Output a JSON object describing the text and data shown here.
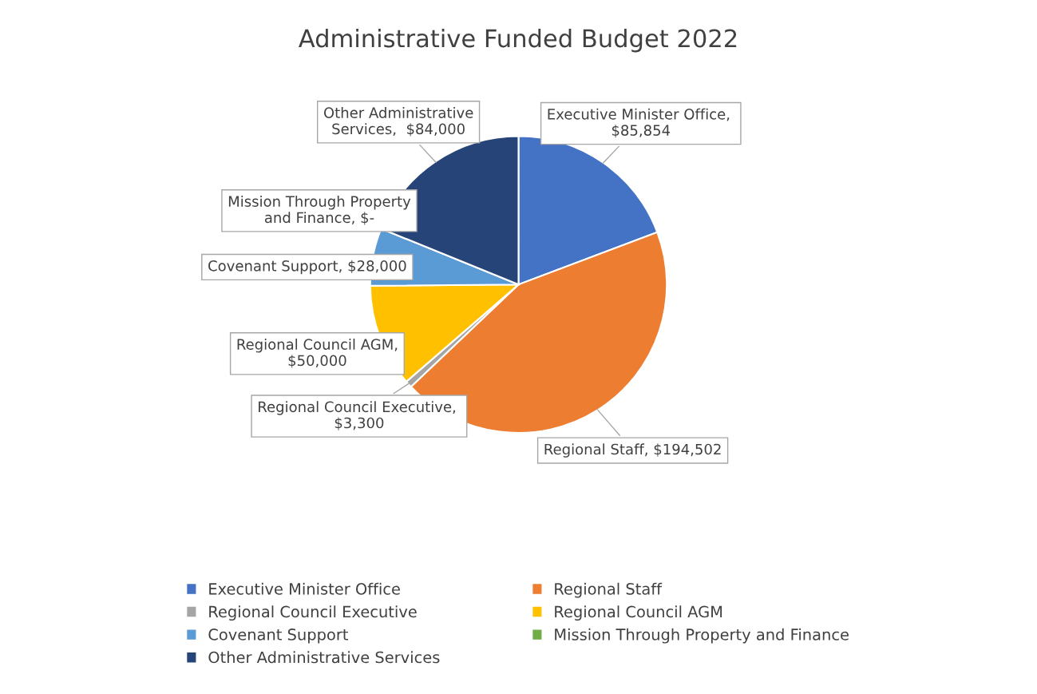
{
  "chart_data": {
    "type": "pie",
    "title": "Administrative Funded Budget 2022",
    "categories": [
      "Executive Minister Office",
      "Regional Staff",
      "Regional Council Executive",
      "Regional Council AGM",
      "Covenant Support",
      "Mission Through Property and Finance",
      "Other Administrative Services"
    ],
    "values": [
      85854,
      194502,
      3300,
      50000,
      28000,
      0,
      84000
    ],
    "value_labels": [
      "Executive Minister Office,  $85,854",
      "Regional Staff, $194,502",
      "Regional Council Executive,  $3,300",
      "Regional Council AGM, $50,000",
      "Covenant Support, $28,000",
      "Mission Through Property and Finance, $-",
      "Other Administrative Services,  $84,000"
    ],
    "colors": [
      "#4472c4",
      "#ed7d31",
      "#a5a5a5",
      "#ffc000",
      "#5b9bd5",
      "#70ad47",
      "#264478"
    ],
    "legend": "bottom"
  }
}
